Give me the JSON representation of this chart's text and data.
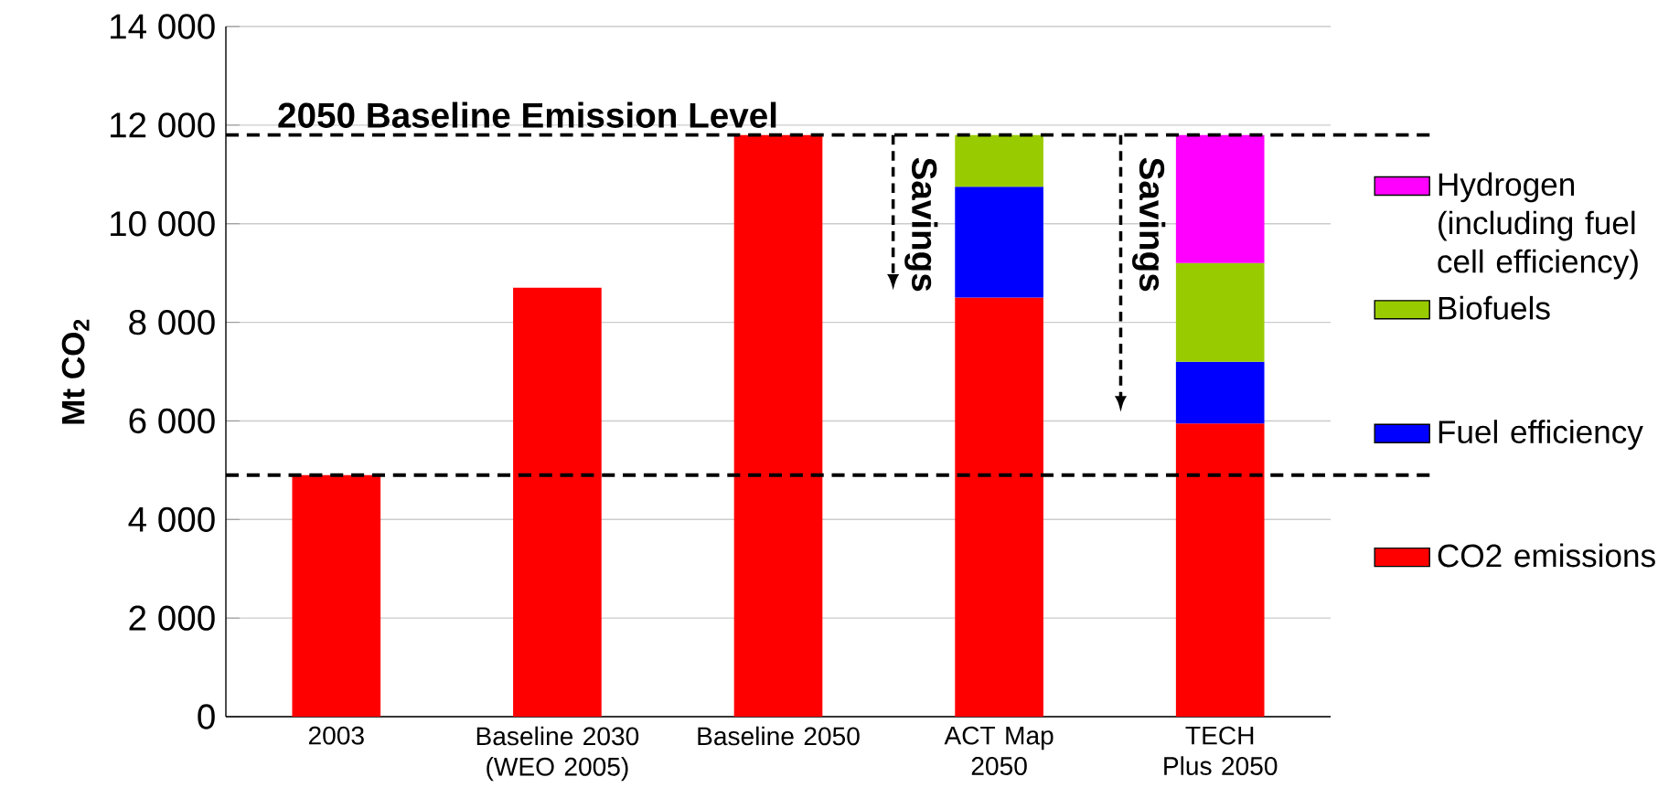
{
  "chart_data": {
    "type": "bar",
    "stacked": true,
    "ylabel": "Mt CO$_{2}$",
    "categories": [
      "2003",
      "Baseline 2030 (WEO 2005)",
      "Baseline 2050",
      "ACT Map 2050",
      "TECH Plus 2050"
    ],
    "series": [
      {
        "name": "CO2 emissions",
        "color": "#ff0000",
        "values": [
          4900,
          8700,
          11800,
          8500,
          5950
        ]
      },
      {
        "name": "Fuel efficiency",
        "color": "#0000ff",
        "values": [
          null,
          null,
          null,
          2250,
          1250
        ]
      },
      {
        "name": "Biofuels",
        "color": "#99cc00",
        "values": [
          null,
          null,
          null,
          1050,
          2000
        ]
      },
      {
        "name": "Hydrogen (including fuel cell efficiency)",
        "color": "#ff00ff",
        "values": [
          null,
          null,
          null,
          null,
          2600
        ]
      }
    ],
    "ylim": [
      0,
      14000
    ],
    "yticks": [
      {
        "value": 0,
        "label": "0"
      },
      {
        "value": 2000,
        "label": "2 000"
      },
      {
        "value": 4000,
        "label": "4 000"
      },
      {
        "value": 6000,
        "label": "6 000"
      },
      {
        "value": 8000,
        "label": "8 000"
      },
      {
        "value": 10000,
        "label": "10 000"
      },
      {
        "value": 12000,
        "label": "12 000"
      },
      {
        "value": 14000,
        "label": "14 000"
      }
    ],
    "grid": "y",
    "legend": "right",
    "ref_lines": [
      {
        "axis": "y",
        "value": 11800,
        "label": "2050 Baseline Emission Level",
        "line_style": "dashed",
        "color": "#000000"
      },
      {
        "axis": "y",
        "value": 4900,
        "line_style": "dashed",
        "color": "#000000"
      }
    ],
    "annotations": [
      "Savings",
      "Savings"
    ]
  }
}
